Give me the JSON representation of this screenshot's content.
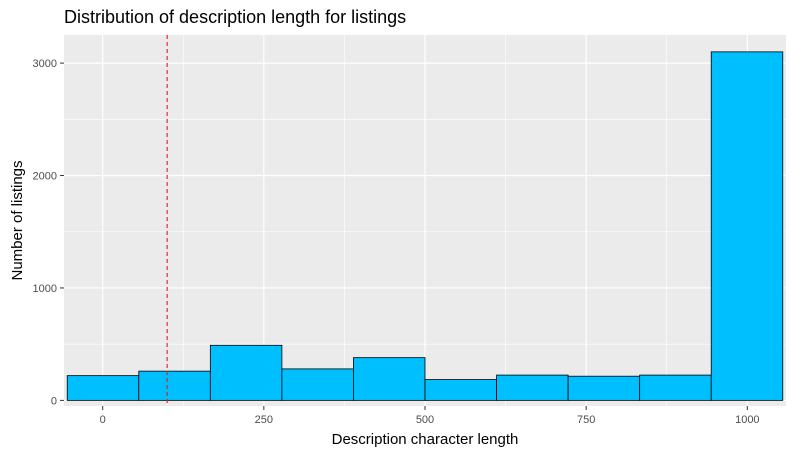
{
  "chart_data": {
    "type": "histogram",
    "title": "Distribution of description length for listings",
    "xlabel": "Description character length",
    "ylabel": "Number of listings",
    "xlim": [
      -60,
      1060
    ],
    "ylim": [
      -50,
      3250
    ],
    "x_ticks": [
      0,
      250,
      500,
      750,
      1000
    ],
    "y_ticks": [
      0,
      1000,
      2000,
      3000
    ],
    "bins": [
      {
        "x0": -55,
        "x1": 56,
        "count": 220
      },
      {
        "x0": 56,
        "x1": 167,
        "count": 260
      },
      {
        "x0": 167,
        "x1": 278,
        "count": 490
      },
      {
        "x0": 278,
        "x1": 389,
        "count": 280
      },
      {
        "x0": 389,
        "x1": 500,
        "count": 380
      },
      {
        "x0": 500,
        "x1": 611,
        "count": 185
      },
      {
        "x0": 611,
        "x1": 722,
        "count": 225
      },
      {
        "x0": 722,
        "x1": 833,
        "count": 215
      },
      {
        "x0": 833,
        "x1": 944,
        "count": 225
      },
      {
        "x0": 944,
        "x1": 1055,
        "count": 3100
      }
    ],
    "reference_line": {
      "x": 100,
      "style": "dashed",
      "color": "#e41a1c"
    },
    "bar_fill": "#00bfff",
    "bar_stroke": "#000000",
    "panel_background": "#ebebeb",
    "grid": true
  }
}
